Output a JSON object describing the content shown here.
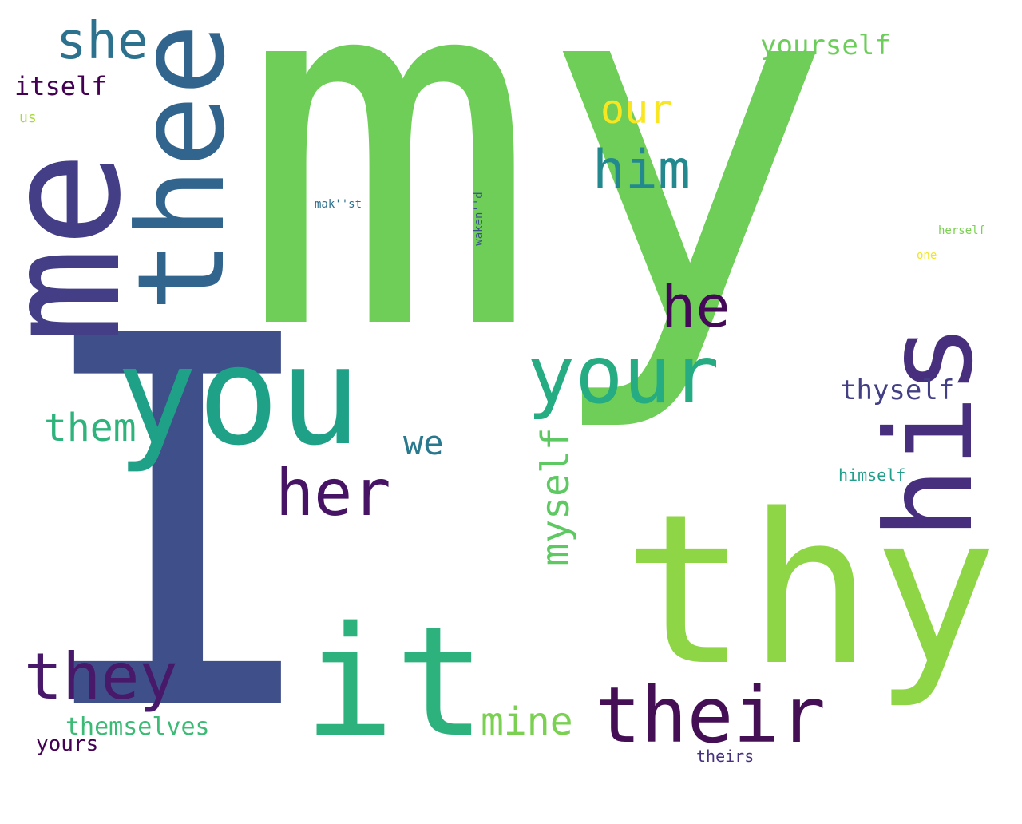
{
  "words": [
    {
      "text": "my",
      "color": "#6ece58",
      "rotated": false
    },
    {
      "text": "I",
      "color": "#3e4f8a",
      "rotated": false
    },
    {
      "text": "me",
      "color": "#433e85",
      "rotated": true
    },
    {
      "text": "thee",
      "color": "#32658e",
      "rotated": true
    },
    {
      "text": "you",
      "color": "#1fa188",
      "rotated": false
    },
    {
      "text": "his",
      "color": "#472f7d",
      "rotated": true
    },
    {
      "text": "thy",
      "color": "#8ed645",
      "rotated": false
    },
    {
      "text": "it",
      "color": "#2db27d",
      "rotated": false
    },
    {
      "text": "your",
      "color": "#25ac82",
      "rotated": false
    },
    {
      "text": "their",
      "color": "#440f55",
      "rotated": false
    },
    {
      "text": "they",
      "color": "#48186a",
      "rotated": false
    },
    {
      "text": "her",
      "color": "#471365",
      "rotated": false
    },
    {
      "text": "she",
      "color": "#2c728e",
      "rotated": false
    },
    {
      "text": "he",
      "color": "#440a57",
      "rotated": false
    },
    {
      "text": "him",
      "color": "#23898e",
      "rotated": false
    },
    {
      "text": "our",
      "color": "#f8e621",
      "rotated": false
    },
    {
      "text": "myself",
      "color": "#5ec962",
      "rotated": true
    },
    {
      "text": "them",
      "color": "#2eb37c",
      "rotated": false
    },
    {
      "text": "mine",
      "color": "#7ad151",
      "rotated": false
    },
    {
      "text": "we",
      "color": "#2a788e",
      "rotated": false
    },
    {
      "text": "thyself",
      "color": "#423f85",
      "rotated": false
    },
    {
      "text": "yourself",
      "color": "#6ccd5a",
      "rotated": false
    },
    {
      "text": "itself",
      "color": "#440154",
      "rotated": false
    },
    {
      "text": "themselves",
      "color": "#3bbb75",
      "rotated": false
    },
    {
      "text": "yours",
      "color": "#440154",
      "rotated": false
    },
    {
      "text": "himself",
      "color": "#1f9e89",
      "rotated": false
    },
    {
      "text": "theirs",
      "color": "#46307e",
      "rotated": false
    },
    {
      "text": "us",
      "color": "#a5db36",
      "rotated": false
    },
    {
      "text": "mak''st",
      "color": "#2d708e",
      "rotated": false
    },
    {
      "text": "waken''d",
      "color": "#3b518b",
      "rotated": true
    },
    {
      "text": "herself",
      "color": "#7ad151",
      "rotated": false
    },
    {
      "text": "one",
      "color": "#f1e51d",
      "rotated": false
    }
  ]
}
